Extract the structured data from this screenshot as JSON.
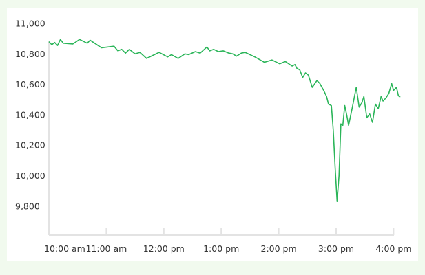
{
  "chart_data": {
    "type": "line",
    "title": "",
    "xlabel": "",
    "ylabel": "",
    "ylim": [
      9600,
      11000
    ],
    "grid": false,
    "legend": "none",
    "x_ticks": [
      "10:00 am",
      "11:00 am",
      "12:00 pm",
      "1:00 pm",
      "2:00 pm",
      "3:00 pm",
      "4:00 pm"
    ],
    "y_ticks": [
      "9,800",
      "10,000",
      "10,200",
      "10,400",
      "10,600",
      "10,800",
      "11,000"
    ],
    "series": [
      {
        "name": "",
        "color": "#2bb559",
        "points": [
          [
            "10:00",
            10880
          ],
          [
            "10:03",
            10860
          ],
          [
            "10:06",
            10875
          ],
          [
            "10:09",
            10855
          ],
          [
            "10:12",
            10895
          ],
          [
            "10:15",
            10870
          ],
          [
            "10:25",
            10865
          ],
          [
            "10:32",
            10895
          ],
          [
            "10:40",
            10870
          ],
          [
            "10:43",
            10890
          ],
          [
            "10:55",
            10840
          ],
          [
            "11:08",
            10850
          ],
          [
            "11:12",
            10820
          ],
          [
            "11:16",
            10830
          ],
          [
            "11:20",
            10805
          ],
          [
            "11:24",
            10830
          ],
          [
            "11:30",
            10800
          ],
          [
            "11:35",
            10810
          ],
          [
            "11:42",
            10770
          ],
          [
            "11:55",
            10810
          ],
          [
            "12:04",
            10780
          ],
          [
            "12:08",
            10795
          ],
          [
            "12:15",
            10770
          ],
          [
            "12:22",
            10800
          ],
          [
            "12:26",
            10795
          ],
          [
            "12:33",
            10815
          ],
          [
            "12:38",
            10805
          ],
          [
            "12:45",
            10845
          ],
          [
            "12:48",
            10820
          ],
          [
            "12:52",
            10830
          ],
          [
            "12:57",
            10815
          ],
          [
            "13:02",
            10820
          ],
          [
            "13:08",
            10805
          ],
          [
            "13:12",
            10800
          ],
          [
            "13:16",
            10785
          ],
          [
            "13:21",
            10805
          ],
          [
            "13:25",
            10810
          ],
          [
            "13:35",
            10780
          ],
          [
            "13:45",
            10745
          ],
          [
            "13:53",
            10760
          ],
          [
            "14:01",
            10735
          ],
          [
            "14:07",
            10750
          ],
          [
            "14:14",
            10720
          ],
          [
            "14:17",
            10730
          ],
          [
            "14:19",
            10705
          ],
          [
            "14:22",
            10695
          ],
          [
            "14:25",
            10645
          ],
          [
            "14:28",
            10675
          ],
          [
            "14:31",
            10660
          ],
          [
            "14:35",
            10580
          ],
          [
            "14:40",
            10625
          ],
          [
            "14:43",
            10605
          ],
          [
            "14:47",
            10560
          ],
          [
            "14:50",
            10520
          ],
          [
            "14:52",
            10470
          ],
          [
            "14:55",
            10460
          ],
          [
            "14:57",
            10300
          ],
          [
            "14:59",
            10050
          ],
          [
            "15:01",
            9830
          ],
          [
            "15:03",
            10000
          ],
          [
            "15:05",
            10340
          ],
          [
            "15:07",
            10330
          ],
          [
            "15:09",
            10460
          ],
          [
            "15:11",
            10400
          ],
          [
            "15:13",
            10330
          ],
          [
            "15:17",
            10450
          ],
          [
            "15:21",
            10580
          ],
          [
            "15:24",
            10450
          ],
          [
            "15:27",
            10480
          ],
          [
            "15:29",
            10520
          ],
          [
            "15:32",
            10380
          ],
          [
            "15:35",
            10405
          ],
          [
            "15:38",
            10350
          ],
          [
            "15:41",
            10470
          ],
          [
            "15:44",
            10440
          ],
          [
            "15:47",
            10520
          ],
          [
            "15:49",
            10490
          ],
          [
            "15:52",
            10510
          ],
          [
            "15:55",
            10540
          ],
          [
            "15:58",
            10605
          ],
          [
            "16:00",
            10560
          ],
          [
            "16:03",
            10580
          ],
          [
            "16:05",
            10525
          ],
          [
            "16:07",
            10515
          ]
        ]
      }
    ]
  }
}
